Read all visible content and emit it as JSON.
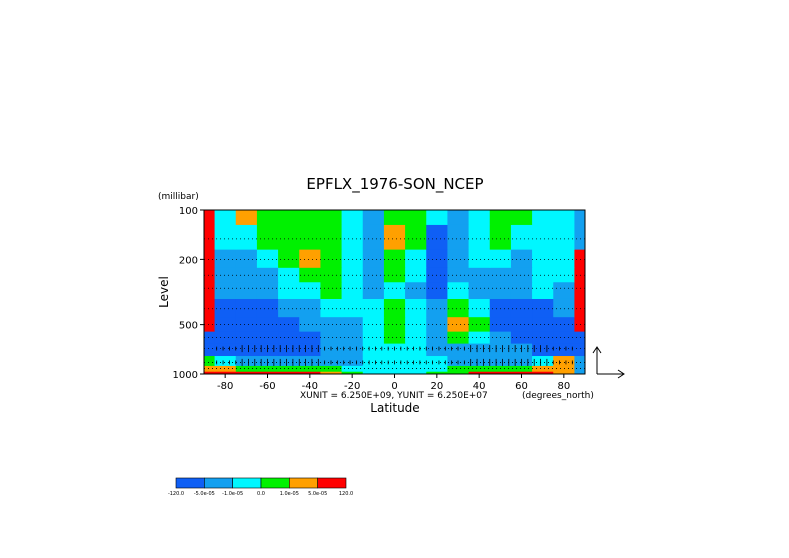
{
  "chart_data": {
    "type": "heatmap",
    "title": "EPFLX_1976-SON_NCEP",
    "xlabel": "Latitude",
    "x_unit": "(degrees_north)",
    "ylabel": "Level",
    "y_unit": "(millibar)",
    "xlim": [
      -90,
      90
    ],
    "ylim": [
      1000,
      100
    ],
    "y_scale": "log",
    "x_ticks": [
      "-80",
      "-60",
      "-40",
      "-20",
      "0",
      "20",
      "40",
      "60",
      "80"
    ],
    "x_tick_values": [
      -80,
      -60,
      -40,
      -20,
      0,
      20,
      40,
      60,
      80
    ],
    "y_ticks": [
      "100",
      "200",
      "500",
      "1000"
    ],
    "y_tick_values": [
      100,
      200,
      500,
      1000
    ],
    "vector_units": "XUNIT = 6.250E+09, YUNIT = 6.250E+07",
    "colorbar": {
      "labels": [
        "-120.0",
        "-5.0e-05",
        "-1.0e-05",
        "0.0",
        "1.0e-05",
        "5.0e-05",
        "120.0"
      ],
      "colors": [
        "#0f5ff5",
        "#13a0f0",
        "#00f7ff",
        "#00f100",
        "#ffa000",
        "#ff0000"
      ]
    },
    "levels_mb": [
      1000,
      925,
      850,
      700,
      600,
      500,
      400,
      300,
      250,
      200,
      150,
      100
    ],
    "lats": [
      -90,
      -80,
      -70,
      -60,
      -50,
      -40,
      -30,
      -20,
      -10,
      0,
      10,
      20,
      30,
      40,
      50,
      60,
      70,
      80,
      90
    ],
    "classes": [
      [
        5,
        5,
        5,
        5,
        5,
        5,
        4,
        3,
        2,
        2,
        2,
        3,
        3,
        5,
        5,
        5,
        5,
        4,
        1
      ],
      [
        4,
        4,
        3,
        3,
        3,
        3,
        3,
        2,
        2,
        2,
        2,
        2,
        3,
        3,
        3,
        3,
        4,
        4,
        1
      ],
      [
        3,
        2,
        1,
        1,
        1,
        1,
        1,
        1,
        2,
        2,
        2,
        2,
        1,
        1,
        1,
        1,
        2,
        4,
        1
      ],
      [
        0,
        0,
        0,
        0,
        0,
        0,
        1,
        1,
        2,
        2,
        2,
        1,
        1,
        1,
        1,
        1,
        0,
        0,
        0
      ],
      [
        0,
        0,
        0,
        0,
        0,
        0,
        1,
        1,
        2,
        3,
        2,
        1,
        3,
        2,
        1,
        0,
        0,
        0,
        0
      ],
      [
        5,
        0,
        0,
        0,
        0,
        1,
        1,
        1,
        2,
        3,
        2,
        1,
        4,
        3,
        0,
        0,
        0,
        0,
        5
      ],
      [
        5,
        0,
        0,
        0,
        1,
        1,
        2,
        2,
        2,
        3,
        2,
        1,
        3,
        2,
        0,
        0,
        0,
        1,
        5
      ],
      [
        5,
        1,
        1,
        1,
        2,
        2,
        3,
        2,
        1,
        2,
        1,
        0,
        2,
        1,
        1,
        1,
        2,
        1,
        5
      ],
      [
        5,
        1,
        1,
        1,
        2,
        3,
        3,
        2,
        1,
        3,
        2,
        0,
        1,
        1,
        1,
        1,
        2,
        2,
        5
      ],
      [
        5,
        1,
        1,
        2,
        3,
        4,
        3,
        2,
        1,
        3,
        2,
        0,
        1,
        2,
        2,
        1,
        2,
        2,
        5
      ],
      [
        5,
        2,
        2,
        3,
        3,
        3,
        3,
        2,
        1,
        4,
        3,
        0,
        1,
        2,
        3,
        2,
        2,
        2,
        1
      ],
      [
        5,
        2,
        4,
        3,
        3,
        3,
        3,
        2,
        1,
        3,
        3,
        2,
        1,
        2,
        3,
        3,
        2,
        2,
        1
      ]
    ]
  }
}
